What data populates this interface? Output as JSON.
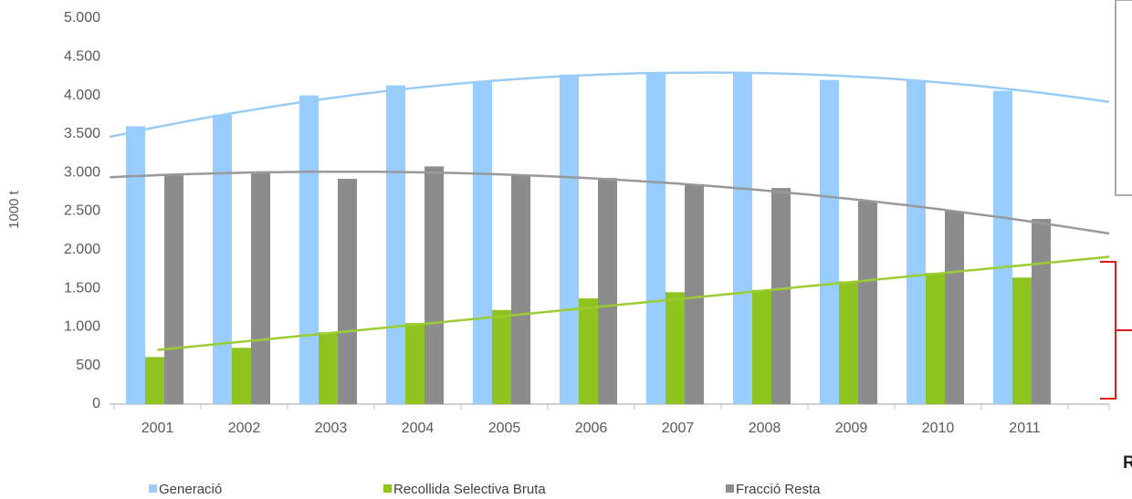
{
  "chart_data": {
    "type": "bar",
    "y_label": "1000 t",
    "categories": [
      "2001",
      "2002",
      "2003",
      "2004",
      "2005",
      "2006",
      "2007",
      "2008",
      "2009",
      "2010",
      "2011"
    ],
    "series": [
      {
        "name": "Generació",
        "color": "#99ccff",
        "trend_color": "#99ccf5",
        "trend_order": 2,
        "values": [
          3600,
          3750,
          4000,
          4130,
          4180,
          4270,
          4290,
          4300,
          4200,
          4200,
          4060
        ]
      },
      {
        "name": "Recollida Selectiva Bruta",
        "color": "#8fc31f",
        "trend_color": "#9acd32",
        "trend_order": 1,
        "values": [
          610,
          730,
          930,
          1050,
          1220,
          1370,
          1450,
          1480,
          1590,
          1700,
          1640
        ]
      },
      {
        "name": "Fracció Resta",
        "color": "#8c8c8c",
        "trend_color": "#999999",
        "trend_order": 2,
        "values": [
          2980,
          3010,
          2920,
          3080,
          2970,
          2930,
          2850,
          2800,
          2630,
          2500,
          2400
        ]
      }
    ],
    "ylim": [
      0,
      5000
    ],
    "yticks": [
      0,
      {
        "value": 500,
        "label": "500"
      },
      {
        "value": 1000,
        "label": "1.000"
      },
      {
        "value": 1500,
        "label": "1.500"
      },
      {
        "value": 2000,
        "label": "2.000"
      },
      {
        "value": 2500,
        "label": "2.500"
      },
      {
        "value": 3000,
        "label": "3.000"
      },
      {
        "value": 3500,
        "label": "3.500"
      },
      {
        "value": 4000,
        "label": "4.000"
      },
      {
        "value": 4500,
        "label": "4.500"
      },
      {
        "value": 5000,
        "label": "5.000"
      }
    ],
    "grid": false,
    "legend": "bottom",
    "annotations": [
      "R"
    ]
  }
}
